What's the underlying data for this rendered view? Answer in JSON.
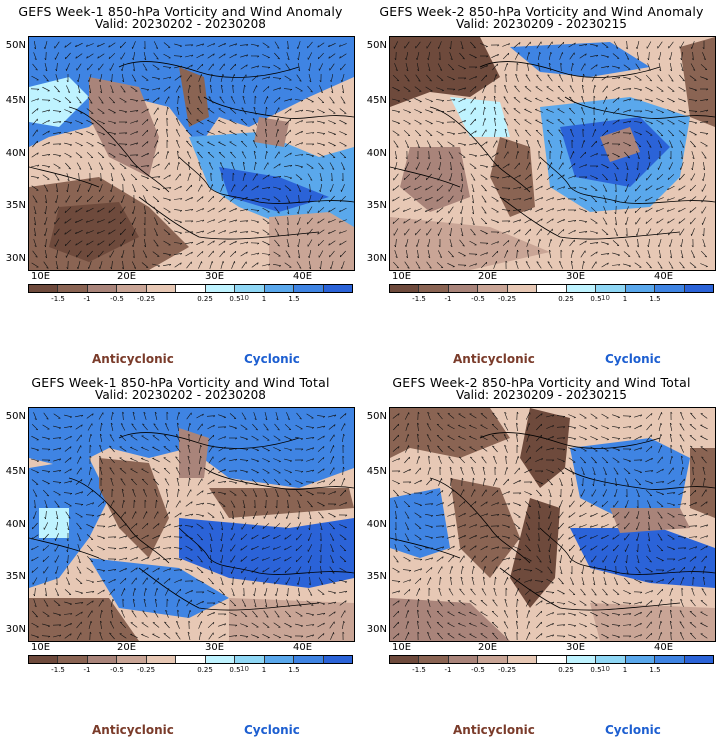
{
  "panels": [
    {
      "title": "GEFS Week-1 850-hPa Vorticity and Wind Anomaly",
      "valid": "Valid: 20230202 - 20230208"
    },
    {
      "title": "GEFS Week-2 850-hPa Vorticity and Wind Anomaly",
      "valid": "Valid: 20230209 - 20230215"
    },
    {
      "title": "GEFS Week-1 850-hPa Vorticity and Wind Total",
      "valid": "Valid: 20230202 - 20230208"
    },
    {
      "title": "GEFS Week-2 850-hPa Vorticity and Wind Total",
      "valid": "Valid: 20230209 - 20230215"
    }
  ],
  "lat_labels": [
    "50N",
    "45N",
    "40N",
    "35N",
    "30N"
  ],
  "lon_labels": [
    "10E",
    "20E",
    "30E",
    "40E"
  ],
  "colorbar": {
    "ticks": [
      "-1.5",
      "-1",
      "-0.5",
      "-0.25",
      "0.25",
      "0.5",
      "1",
      "1.5"
    ],
    "scale_label": "10",
    "colors": [
      "#6e4a3c",
      "#8a6453",
      "#a9847a",
      "#c9a596",
      "#e7c8b5",
      "#ffffff",
      "#bff3ff",
      "#8fd7f5",
      "#5aa8ec",
      "#3f84e3",
      "#2b63d8"
    ]
  },
  "legend": {
    "anticyclonic": "Anticyclonic",
    "cyclonic": "Cyclonic"
  },
  "colors": {
    "anticyclonic": "#7a3b2a",
    "cyclonic": "#1d5fd1"
  }
}
